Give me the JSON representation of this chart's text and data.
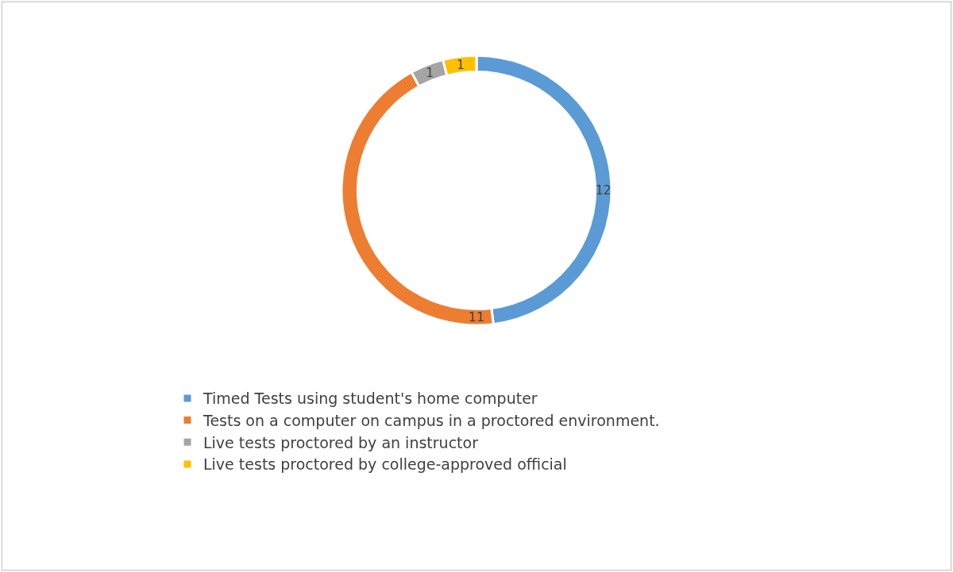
{
  "chart_data": {
    "type": "donut",
    "categories": [
      "Timed Tests using student's home computer",
      "Tests on a computer on campus in a proctored environment.",
      "Live tests proctored by an instructor",
      "Live tests proctored by college-approved official"
    ],
    "values": [
      12,
      11,
      1,
      1
    ],
    "colors": [
      "#5b9bd5",
      "#ed7d31",
      "#a5a5a5",
      "#ffc000"
    ],
    "data_labels": true,
    "legend": "bottom"
  }
}
